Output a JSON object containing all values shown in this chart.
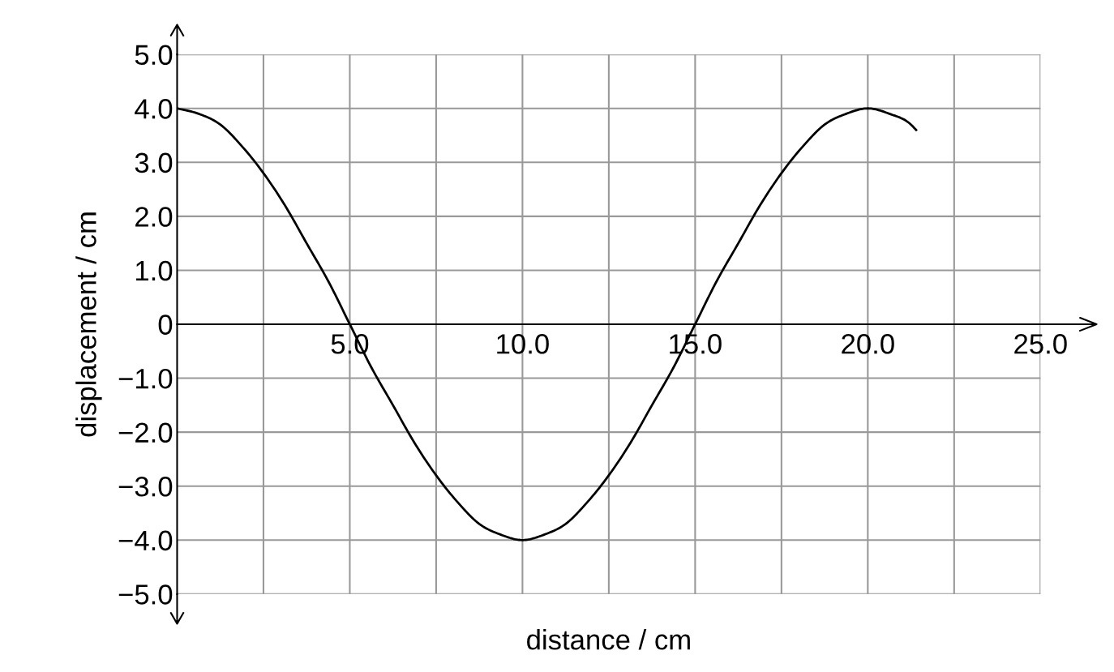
{
  "chart_data": {
    "type": "line",
    "xlabel": "distance / cm",
    "ylabel": "displacement / cm",
    "x": [
      0,
      0.625,
      1.25,
      1.875,
      2.5,
      3.125,
      3.75,
      4.375,
      5,
      5.625,
      6.25,
      6.875,
      7.5,
      8.125,
      8.75,
      9.375,
      10,
      10.625,
      11.25,
      11.875,
      12.5,
      13.125,
      13.75,
      14.375,
      15,
      15.625,
      16.25,
      16.875,
      17.5,
      18.125,
      18.75,
      19.375,
      20,
      20.625,
      21.25,
      21.4
    ],
    "series": [
      {
        "color": "#000000",
        "values": [
          4.0,
          3.9,
          3.7,
          3.3,
          2.8,
          2.2,
          1.5,
          0.8,
          0.0,
          -0.8,
          -1.5,
          -2.2,
          -2.8,
          -3.3,
          -3.7,
          -3.9,
          -4.0,
          -3.9,
          -3.7,
          -3.3,
          -2.8,
          -2.2,
          -1.5,
          -0.8,
          0.0,
          0.8,
          1.5,
          2.2,
          2.8,
          3.3,
          3.7,
          3.9,
          4.0,
          3.9,
          3.7,
          3.6
        ]
      }
    ],
    "xlim": [
      0,
      25
    ],
    "ylim": [
      -5,
      5
    ],
    "xticks": [
      {
        "value": 2.5,
        "label": null
      },
      {
        "value": 5,
        "label": "5.0"
      },
      {
        "value": 7.5,
        "label": null
      },
      {
        "value": 10,
        "label": "10.0"
      },
      {
        "value": 12.5,
        "label": null
      },
      {
        "value": 15,
        "label": "15.0"
      },
      {
        "value": 17.5,
        "label": null
      },
      {
        "value": 20,
        "label": "20.0"
      },
      {
        "value": 22.5,
        "label": null
      },
      {
        "value": 25,
        "label": "25.0"
      }
    ],
    "yticks": [
      {
        "value": -5,
        "label": "−5.0"
      },
      {
        "value": -4,
        "label": "−4.0"
      },
      {
        "value": -3,
        "label": "−3.0"
      },
      {
        "value": -2,
        "label": "−2.0"
      },
      {
        "value": -1,
        "label": "−1.0"
      },
      {
        "value": 0,
        "label": "0"
      },
      {
        "value": 1,
        "label": "1.0"
      },
      {
        "value": 2,
        "label": "2.0"
      },
      {
        "value": 3,
        "label": "3.0"
      },
      {
        "value": 4,
        "label": "4.0"
      },
      {
        "value": 5,
        "label": "5.0"
      }
    ],
    "grid": true,
    "legend": false,
    "marker": "none",
    "line_style": "solid"
  }
}
